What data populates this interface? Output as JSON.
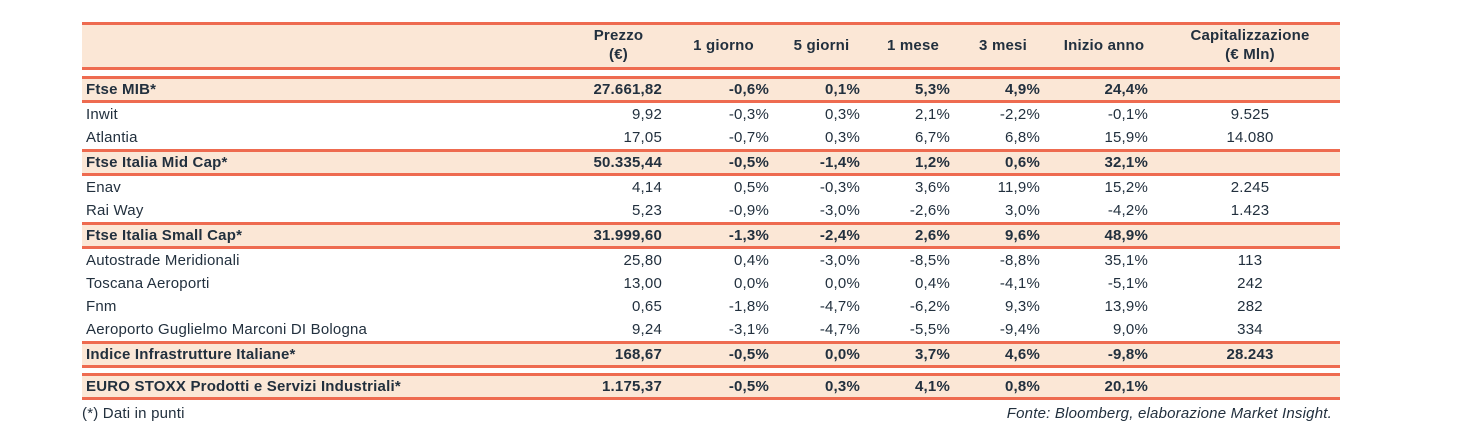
{
  "colors": {
    "accent_rule": "#EE6B50",
    "row_highlight": "#FBE7D6",
    "text": "#22303E"
  },
  "table": {
    "columns": [
      {
        "label": "",
        "sub": ""
      },
      {
        "label": "Prezzo",
        "sub": "(€)"
      },
      {
        "label": "1 giorno",
        "sub": ""
      },
      {
        "label": "5 giorni",
        "sub": ""
      },
      {
        "label": "1 mese",
        "sub": ""
      },
      {
        "label": "3 mesi",
        "sub": ""
      },
      {
        "label": "Inizio anno",
        "sub": ""
      },
      {
        "label": "Capitalizzazione",
        "sub": "(€ Mln)"
      }
    ],
    "rows": [
      {
        "type": "index",
        "name": "Ftse MIB*",
        "values": [
          "27.661,82",
          "-0,6%",
          "0,1%",
          "5,3%",
          "4,9%",
          "24,4%",
          ""
        ]
      },
      {
        "type": "stock",
        "name": "Inwit",
        "values": [
          "9,92",
          "-0,3%",
          "0,3%",
          "2,1%",
          "-2,2%",
          "-0,1%",
          "9.525"
        ]
      },
      {
        "type": "stock",
        "name": "Atlantia",
        "values": [
          "17,05",
          "-0,7%",
          "0,3%",
          "6,7%",
          "6,8%",
          "15,9%",
          "14.080"
        ]
      },
      {
        "type": "index",
        "name": "Ftse Italia Mid Cap*",
        "values": [
          "50.335,44",
          "-0,5%",
          "-1,4%",
          "1,2%",
          "0,6%",
          "32,1%",
          ""
        ]
      },
      {
        "type": "stock",
        "name": "Enav",
        "values": [
          "4,14",
          "0,5%",
          "-0,3%",
          "3,6%",
          "11,9%",
          "15,2%",
          "2.245"
        ]
      },
      {
        "type": "stock",
        "name": "Rai Way",
        "values": [
          "5,23",
          "-0,9%",
          "-3,0%",
          "-2,6%",
          "3,0%",
          "-4,2%",
          "1.423"
        ]
      },
      {
        "type": "index",
        "name": "Ftse Italia Small Cap*",
        "values": [
          "31.999,60",
          "-1,3%",
          "-2,4%",
          "2,6%",
          "9,6%",
          "48,9%",
          ""
        ]
      },
      {
        "type": "stock",
        "name": "Autostrade Meridionali",
        "values": [
          "25,80",
          "0,4%",
          "-3,0%",
          "-8,5%",
          "-8,8%",
          "35,1%",
          "113"
        ]
      },
      {
        "type": "stock",
        "name": "Toscana Aeroporti",
        "values": [
          "13,00",
          "0,0%",
          "0,0%",
          "0,4%",
          "-4,1%",
          "-5,1%",
          "242"
        ]
      },
      {
        "type": "stock",
        "name": "Fnm",
        "values": [
          "0,65",
          "-1,8%",
          "-4,7%",
          "-6,2%",
          "9,3%",
          "13,9%",
          "282"
        ]
      },
      {
        "type": "stock",
        "name": "Aeroporto Guglielmo Marconi DI Bologna",
        "values": [
          "9,24",
          "-3,1%",
          "-4,7%",
          "-5,5%",
          "-9,4%",
          "9,0%",
          "334"
        ]
      },
      {
        "type": "index",
        "name": "Indice Infrastrutture Italiane*",
        "values": [
          "168,67",
          "-0,5%",
          "0,0%",
          "3,7%",
          "4,6%",
          "-9,8%",
          "28.243"
        ]
      },
      {
        "type": "spacer"
      },
      {
        "type": "index",
        "name": "EURO STOXX Prodotti e Servizi Industriali*",
        "values": [
          "1.175,37",
          "-0,5%",
          "0,3%",
          "4,1%",
          "0,8%",
          "20,1%",
          ""
        ]
      }
    ]
  },
  "footer": {
    "note": "(*) Dati in punti",
    "source": "Fonte: Bloomberg, elaborazione Market Insight."
  }
}
